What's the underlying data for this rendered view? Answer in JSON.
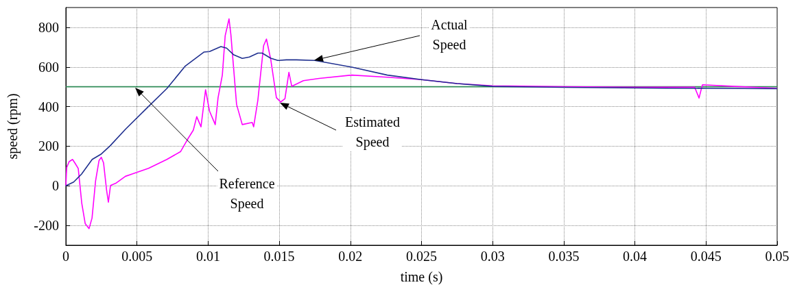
{
  "chart_data": {
    "type": "line",
    "xlabel": "time (s)",
    "ylabel": "speed (rpm)",
    "xlim": [
      0,
      0.05
    ],
    "xticks": [
      0,
      0.005,
      0.01,
      0.015,
      0.02,
      0.025,
      0.03,
      0.035,
      0.04,
      0.045,
      0.05
    ],
    "ylim": [
      -300,
      900
    ],
    "yticks": [
      -200,
      0,
      200,
      400,
      600,
      800
    ],
    "grid": true,
    "marker": "none",
    "line_style": "solid",
    "series": [
      {
        "color": "#2e8b57",
        "x": [
          0,
          0.05
        ],
        "values": [
          500,
          500
        ]
      },
      {
        "color": "#ff00ff",
        "x": [
          0,
          6e-05,
          0.00023,
          0.00047,
          0.00063,
          0.00087,
          0.00112,
          0.00136,
          0.00163,
          0.00184,
          0.00209,
          0.00233,
          0.00249,
          0.00265,
          0.00286,
          0.00299,
          0.00314,
          0.00354,
          0.00419,
          0.00581,
          0.0071,
          0.00807,
          0.00856,
          0.00896,
          0.0092,
          0.0095,
          0.00982,
          0.0101,
          0.0105,
          0.0107,
          0.011,
          0.0112,
          0.01147,
          0.0116,
          0.012,
          0.0124,
          0.0131,
          0.0132,
          0.0135,
          0.0139,
          0.0141,
          0.0144,
          0.0148,
          0.0151,
          0.0154,
          0.01568,
          0.01588,
          0.0167,
          0.0178,
          0.0201,
          0.0226,
          0.025,
          0.0275,
          0.03,
          0.035,
          0.04,
          0.0442,
          0.04451,
          0.0447,
          0.04475,
          0.047,
          0.05
        ],
        "values": [
          0,
          93,
          122,
          133,
          116,
          88,
          -89,
          -191,
          -216,
          -163,
          25,
          127,
          144,
          116,
          -20,
          -83,
          2,
          14,
          48,
          88,
          133,
          173,
          235,
          281,
          349,
          298,
          485,
          377,
          309,
          445,
          559,
          758,
          843,
          764,
          411,
          309,
          320,
          298,
          434,
          707,
          741,
          639,
          445,
          423,
          440,
          573,
          502,
          531,
          542,
          559,
          548,
          536,
          516,
          505,
          500,
          498,
          498,
          443,
          498,
          510,
          502,
          492
        ]
      },
      {
        "color": "#1f2f8f",
        "x": [
          0,
          0.00055,
          0.0011,
          0.00185,
          0.0025,
          0.0031,
          0.0042,
          0.0058,
          0.0071,
          0.0084,
          0.0097,
          0.0101,
          0.0109,
          0.0113,
          0.0118,
          0.0124,
          0.0129,
          0.0135,
          0.0138,
          0.0144,
          0.0149,
          0.0155,
          0.0162,
          0.0175,
          0.0201,
          0.0226,
          0.025,
          0.0275,
          0.03,
          0.035,
          0.042,
          0.045,
          0.05
        ],
        "values": [
          0,
          19,
          59,
          133,
          161,
          201,
          286,
          400,
          491,
          605,
          675,
          678,
          703,
          695,
          661,
          643,
          650,
          670,
          670,
          644,
          633,
          636,
          636,
          633,
          599,
          559,
          536,
          516,
          502,
          497,
          493,
          492,
          490
        ]
      }
    ],
    "annotations": [
      "Actual\nSpeed",
      "Estimated\nSpeed",
      "Reference\nSpeed"
    ]
  }
}
